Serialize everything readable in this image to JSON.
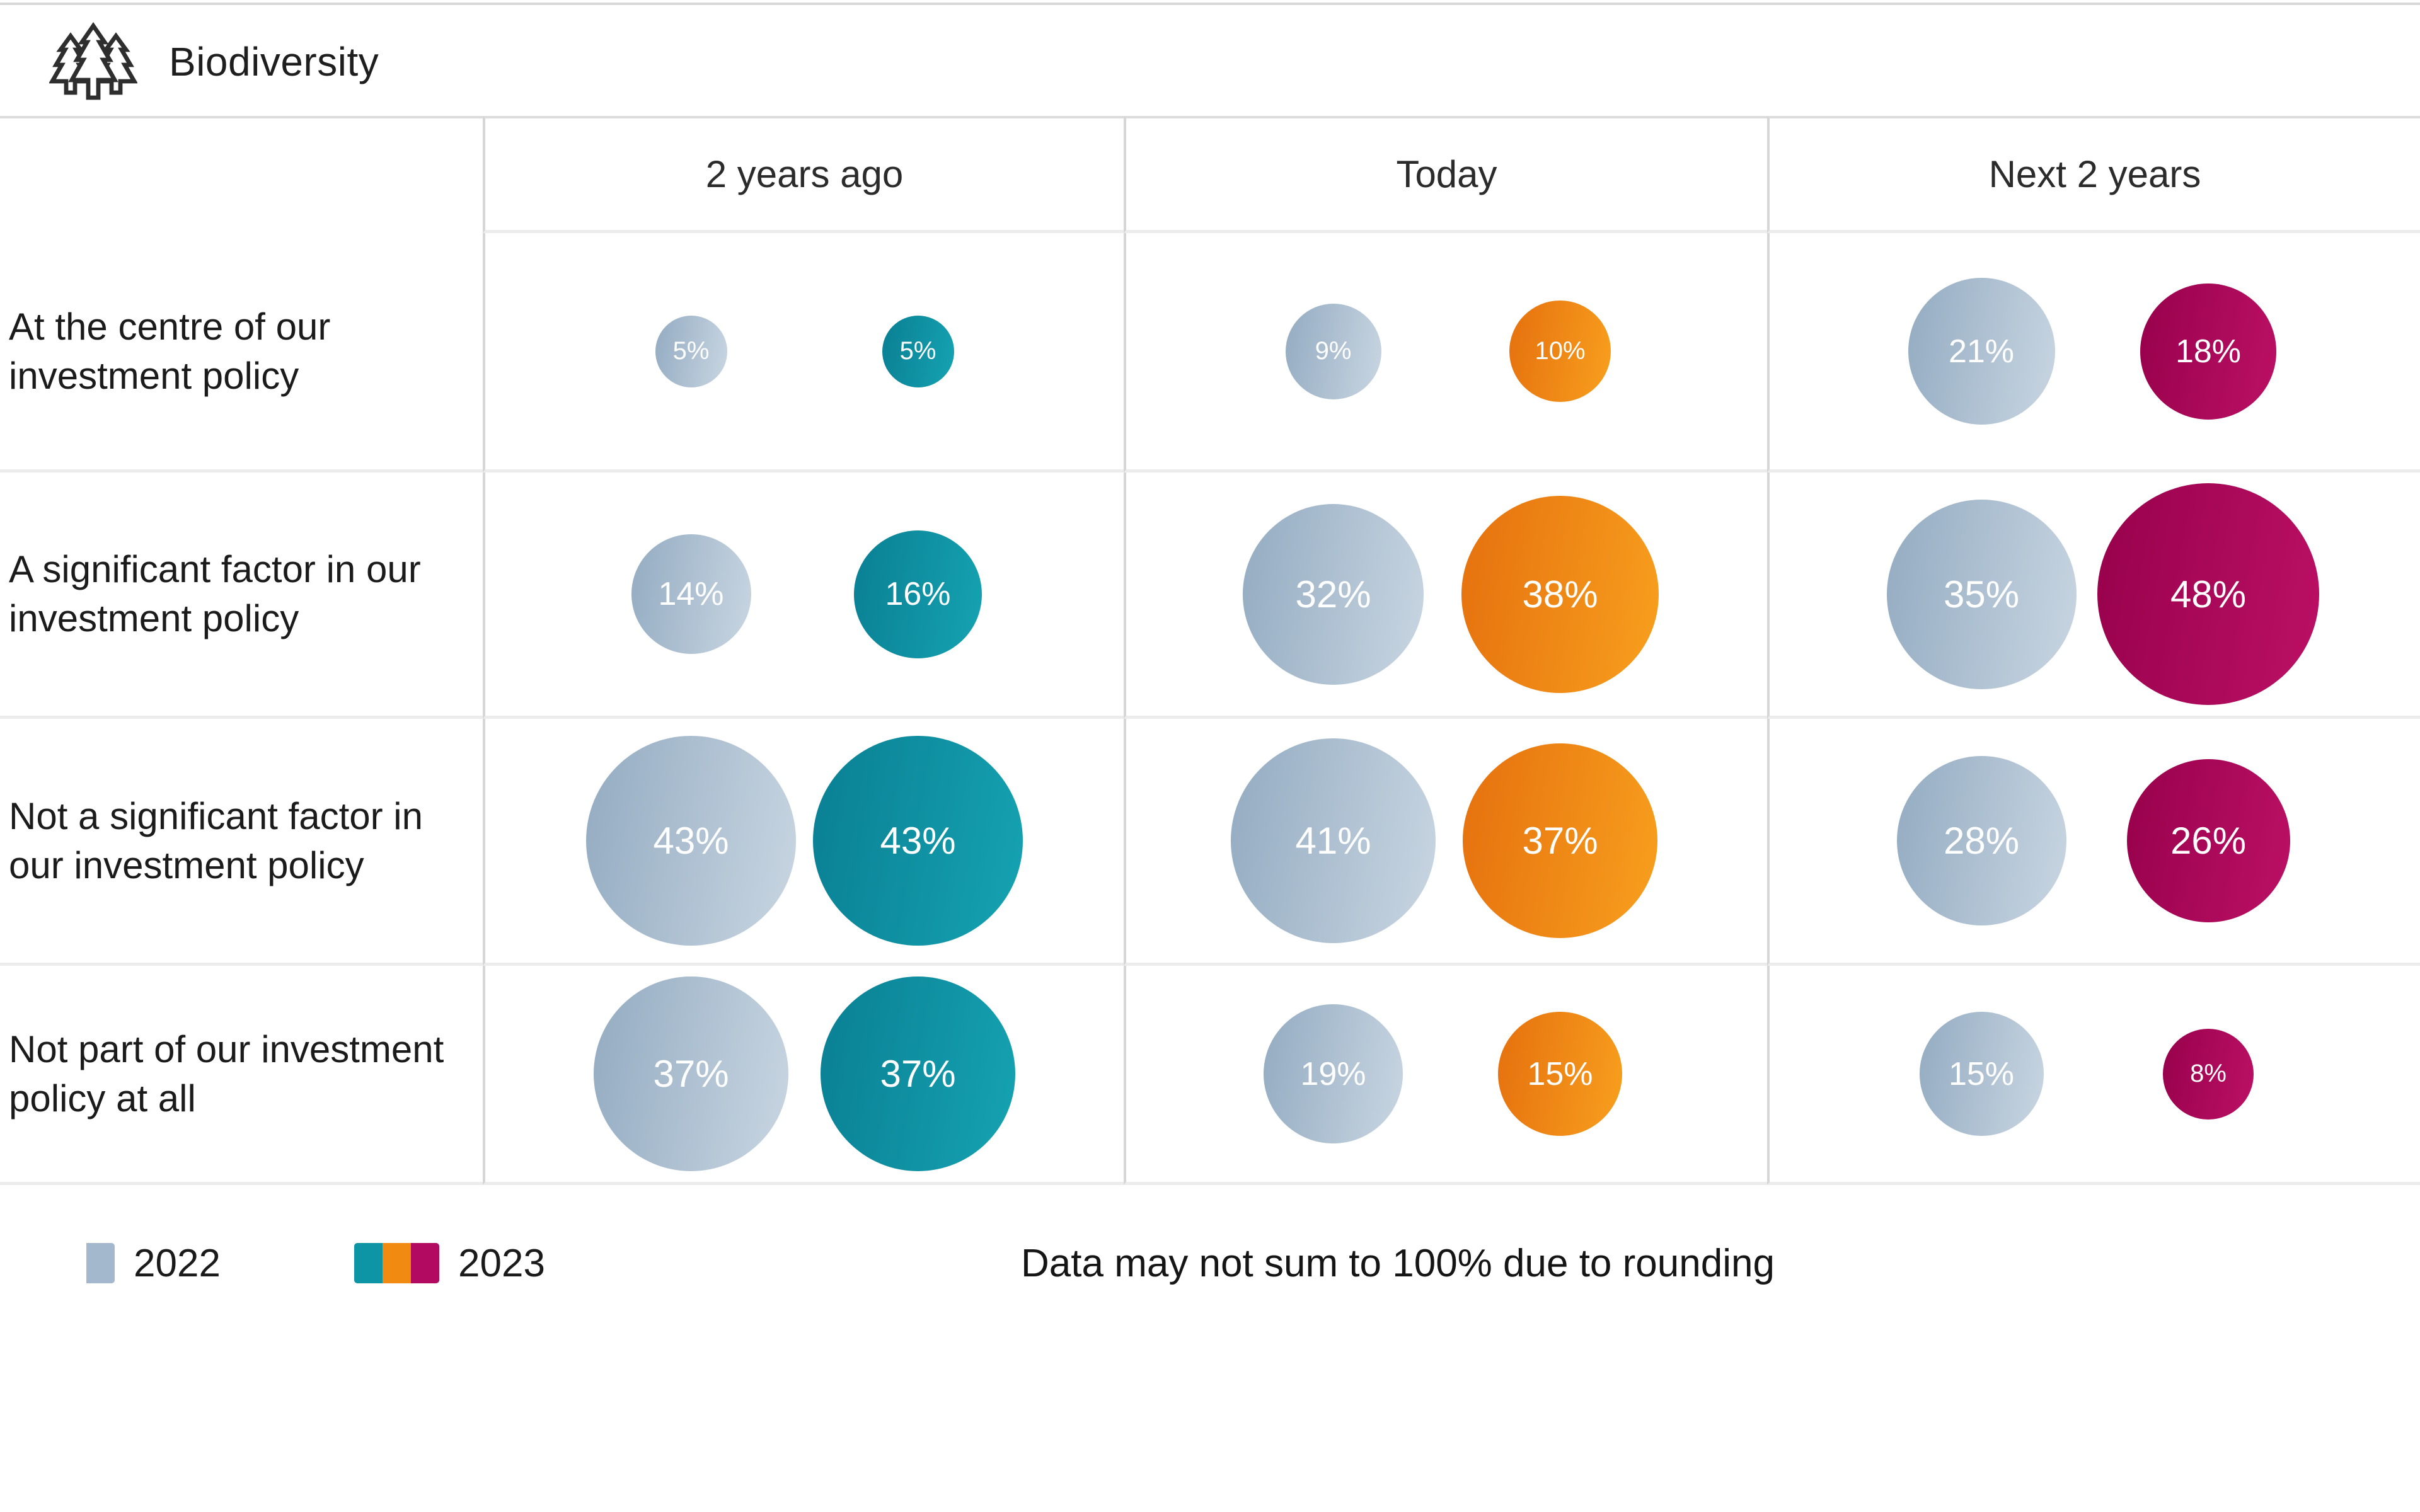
{
  "chart_data": {
    "type": "table",
    "subtype": "bubble-matrix",
    "title": "Biodiversity",
    "title_icon": "pine-trees-icon",
    "unit": "%",
    "columns": [
      "2 years ago",
      "Today",
      "Next 2 years"
    ],
    "rows": [
      "At the centre of our investment policy",
      "A significant factor in our investment policy",
      "Not a significant factor in our investment policy",
      "Not part of our investment policy at all"
    ],
    "series": [
      {
        "name": "2022",
        "color": "#a3b8cc",
        "values_by_row": [
          [
            5,
            9,
            21
          ],
          [
            14,
            32,
            35
          ],
          [
            43,
            41,
            28
          ],
          [
            37,
            19,
            15
          ]
        ]
      },
      {
        "name": "2023",
        "colors_by_column": [
          "#0d95a6",
          "#f18a10",
          "#b30a61"
        ],
        "values_by_row": [
          [
            5,
            10,
            18
          ],
          [
            16,
            38,
            48
          ],
          [
            43,
            37,
            26
          ],
          [
            37,
            15,
            8
          ]
        ]
      }
    ],
    "size_encoding": "bubble diameter proportional to sqrt(value)",
    "legend": [
      {
        "label": "2022",
        "swatches": [
          "#a3b8cc"
        ]
      },
      {
        "label": "2023",
        "swatches": [
          "#0d95a6",
          "#f18a10",
          "#b30a61"
        ]
      }
    ],
    "note": "Data may not sum to 100% due to rounding"
  }
}
